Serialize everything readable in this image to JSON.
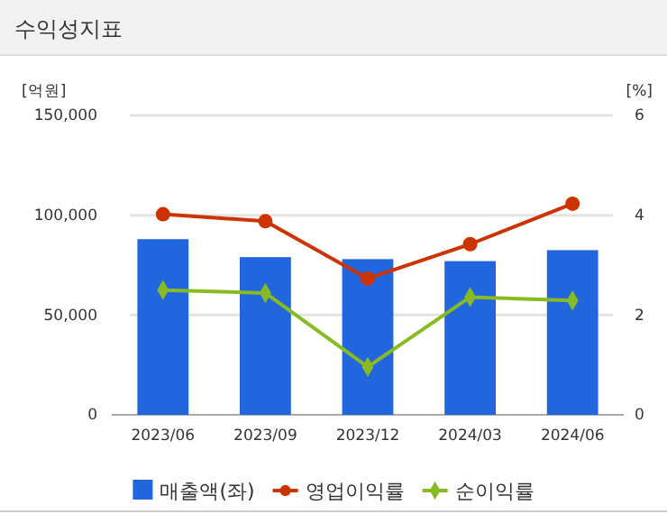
{
  "chart_data": {
    "type": "bar",
    "title": "수익성지표",
    "ylabel": "[억원]",
    "y2label": "[%]",
    "categories": [
      "2023/06",
      "2023/09",
      "2023/12",
      "2024/03",
      "2024/06"
    ],
    "series": [
      {
        "name": "매출액(좌)",
        "color": "#2266dd",
        "values": [
          88000,
          79000,
          78000,
          77000,
          82500
        ]
      },
      {
        "name": "영업이익률",
        "type": "line",
        "axis": "y2",
        "color": "#cc3300",
        "marker": "circle",
        "values": [
          4.02,
          3.88,
          2.73,
          3.42,
          4.23
        ]
      },
      {
        "name": "순이익률",
        "type": "line",
        "axis": "y2",
        "color": "#88bb22",
        "marker": "diamond",
        "values": [
          2.5,
          2.44,
          0.96,
          2.36,
          2.29
        ]
      }
    ],
    "ylim": [
      0,
      150000
    ],
    "yticks": [
      {
        "value": 0,
        "label": "0"
      },
      {
        "value": 50000,
        "label": "50,000"
      },
      {
        "value": 100000,
        "label": "100,000"
      },
      {
        "value": 150000,
        "label": "150,000"
      }
    ],
    "y2lim": [
      0,
      6
    ],
    "y2ticks": [
      0,
      2,
      4,
      6
    ],
    "grid": "y",
    "legend": "bottom"
  }
}
